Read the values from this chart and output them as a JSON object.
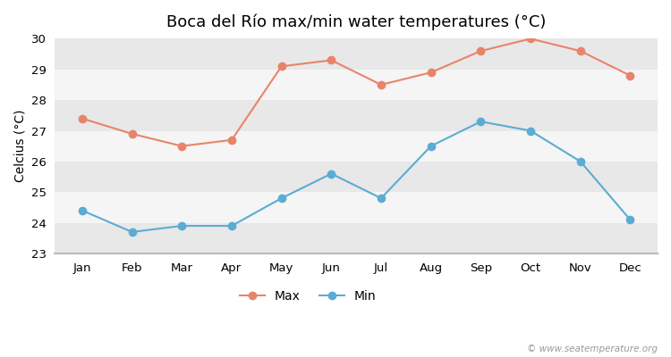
{
  "title": "Boca del Río max/min water temperatures (°C)",
  "ylabel": "Celcius (°C)",
  "months": [
    "Jan",
    "Feb",
    "Mar",
    "Apr",
    "May",
    "Jun",
    "Jul",
    "Aug",
    "Sep",
    "Oct",
    "Nov",
    "Dec"
  ],
  "max_temps": [
    27.4,
    26.9,
    26.5,
    26.7,
    29.1,
    29.3,
    28.5,
    28.9,
    29.6,
    30.0,
    29.6,
    28.8
  ],
  "min_temps": [
    24.4,
    23.7,
    23.9,
    23.9,
    24.8,
    25.6,
    24.8,
    26.5,
    27.3,
    27.0,
    26.0,
    24.1
  ],
  "max_color": "#e8846a",
  "min_color": "#5bacd4",
  "ylim": [
    23,
    30
  ],
  "yticks": [
    23,
    24,
    25,
    26,
    27,
    28,
    29,
    30
  ],
  "band_colors": [
    "#e8e8e8",
    "#f5f5f5"
  ],
  "background_color": "#ffffff",
  "plot_bg_color": "#ffffff",
  "bottom_line_color": "#bbbbbb",
  "watermark": "© www.seatemperature.org",
  "title_fontsize": 13,
  "label_fontsize": 10,
  "tick_fontsize": 9.5,
  "legend_entries": [
    "Max",
    "Min"
  ],
  "marker_style": "o",
  "linewidth": 1.5,
  "markersize": 6
}
